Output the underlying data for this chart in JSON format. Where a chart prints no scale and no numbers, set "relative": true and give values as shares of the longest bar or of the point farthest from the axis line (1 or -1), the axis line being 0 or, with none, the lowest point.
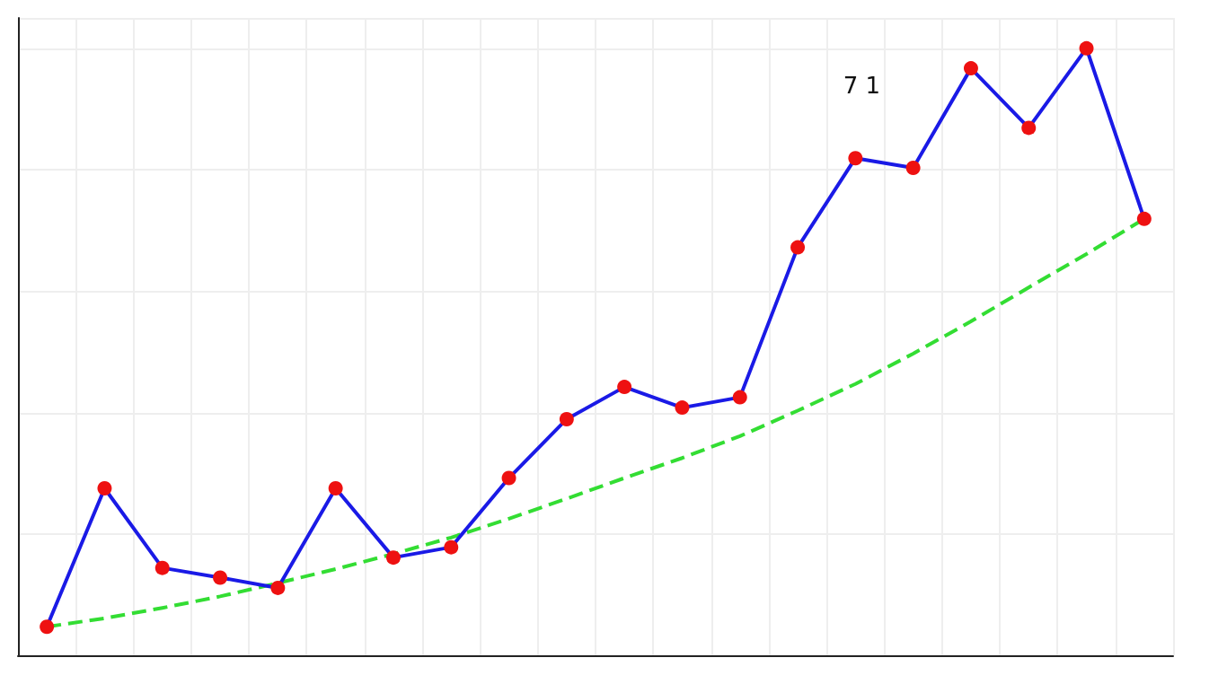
{
  "chart_data": {
    "type": "line",
    "relative": true,
    "grid": true,
    "marker": "circle",
    "categories": [
      null,
      null,
      null,
      null,
      null,
      null,
      null,
      null,
      null,
      null,
      null,
      null,
      null,
      null,
      null,
      null,
      null,
      null,
      null,
      null
    ],
    "annotations": [
      "7 1"
    ],
    "series": [
      {
        "color": "#1a1ae6",
        "colors": [
          "#ee1111",
          "#ee1111",
          "#ee1111",
          "#ee1111",
          "#ee1111",
          "#ee1111",
          "#ee1111",
          "#ee1111",
          "#ee1111",
          "#ee1111",
          "#ee1111",
          "#ee1111",
          "#ee1111",
          "#ee1111",
          "#ee1111",
          "#ee1111",
          "#ee1111",
          "#ee1111",
          "#ee1111",
          "#ee1111"
        ],
        "values": [
          0.047,
          0.275,
          0.144,
          0.128,
          0.111,
          0.275,
          0.161,
          0.178,
          0.292,
          0.389,
          0.442,
          0.408,
          0.425,
          0.672,
          0.819,
          0.803,
          0.967,
          0.869,
          1,
          0.719
        ]
      },
      {
        "color": "#33dd33",
        "marker": "none",
        "line_style": "dashed",
        "values": [
          0.047,
          0.061,
          0.078,
          0.097,
          0.119,
          0.142,
          0.167,
          0.194,
          0.225,
          0.258,
          0.292,
          0.325,
          0.361,
          0.403,
          0.447,
          0.497,
          0.55,
          0.606,
          0.661,
          0.719
        ]
      }
    ]
  }
}
